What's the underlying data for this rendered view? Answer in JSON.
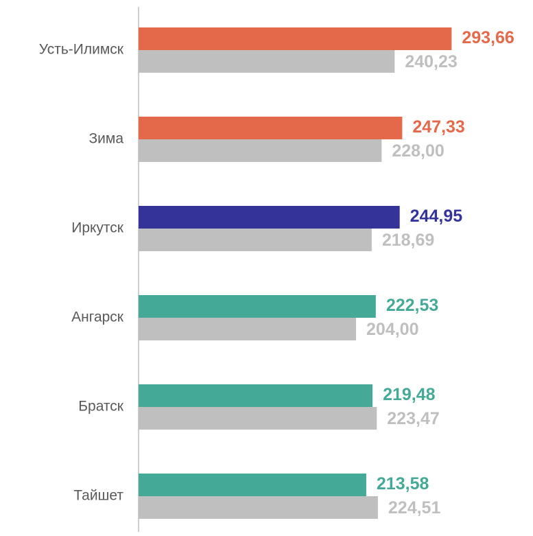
{
  "chart_data": {
    "type": "barh",
    "categories": [
      "Усть-Илимск",
      "Зима",
      "Иркутск",
      "Ангарск",
      "Братск",
      "Тайшет"
    ],
    "series": [
      {
        "colors": [
          "#e4684a",
          "#e4684a",
          "#343399",
          "#45a997",
          "#45a997",
          "#45a997"
        ],
        "values": [
          293.66,
          247.33,
          244.95,
          222.53,
          219.48,
          213.58
        ],
        "value_labels": [
          "293,66",
          "247,33",
          "244,95",
          "222,53",
          "219,48",
          "213,58"
        ]
      },
      {
        "color": "#bfbfbf",
        "values": [
          240.23,
          228.0,
          218.69,
          204.0,
          223.47,
          224.51
        ],
        "value_labels": [
          "240,23",
          "228,00",
          "218,69",
          "204,00",
          "223,47",
          "224,51"
        ]
      }
    ],
    "xlim": [
      0,
      370
    ]
  }
}
